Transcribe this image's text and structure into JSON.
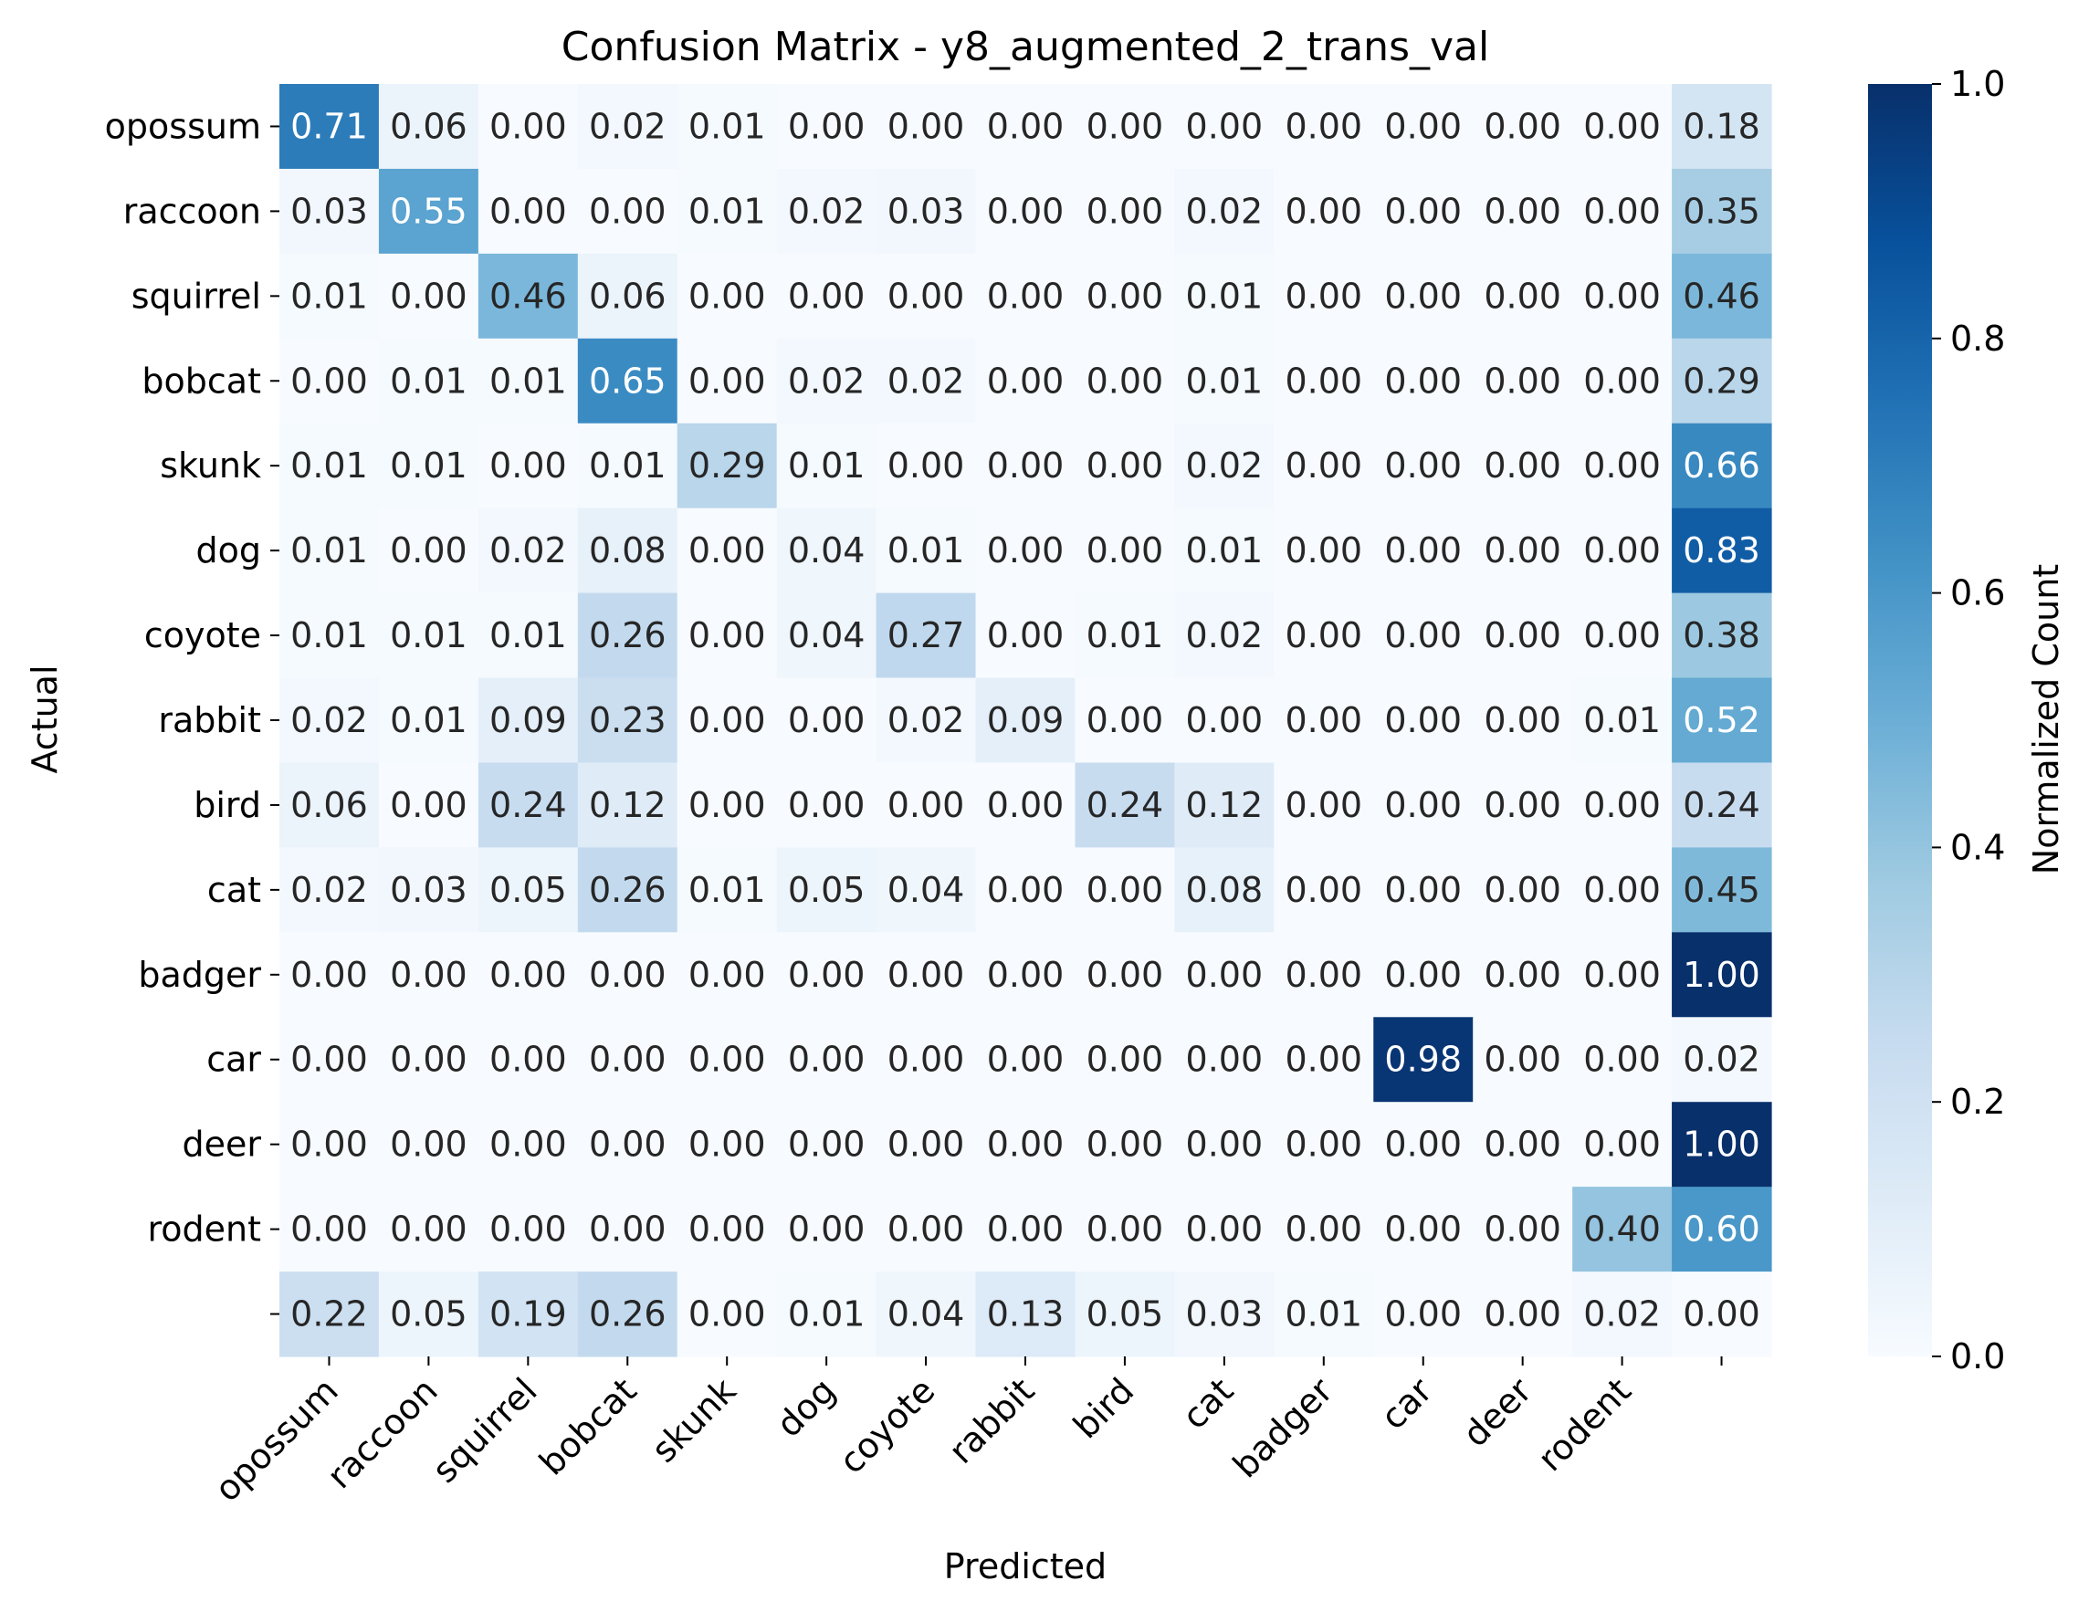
{
  "chart_data": {
    "type": "heatmap",
    "title": "Confusion Matrix - y8_augmented_2_trans_val",
    "xlabel": "Predicted",
    "ylabel": "Actual",
    "x_categories": [
      "opossum",
      "raccoon",
      "squirrel",
      "bobcat",
      "skunk",
      "dog",
      "coyote",
      "rabbit",
      "bird",
      "cat",
      "badger",
      "car",
      "deer",
      "rodent",
      ""
    ],
    "y_categories": [
      "opossum",
      "raccoon",
      "squirrel",
      "bobcat",
      "skunk",
      "dog",
      "coyote",
      "rabbit",
      "bird",
      "cat",
      "badger",
      "car",
      "deer",
      "rodent",
      ""
    ],
    "values": [
      [
        0.71,
        0.06,
        0.0,
        0.02,
        0.01,
        0.0,
        0.0,
        0.0,
        0.0,
        0.0,
        0.0,
        0.0,
        0.0,
        0.0,
        0.18
      ],
      [
        0.03,
        0.55,
        0.0,
        0.0,
        0.01,
        0.02,
        0.03,
        0.0,
        0.0,
        0.02,
        0.0,
        0.0,
        0.0,
        0.0,
        0.35
      ],
      [
        0.01,
        0.0,
        0.46,
        0.06,
        0.0,
        0.0,
        0.0,
        0.0,
        0.0,
        0.01,
        0.0,
        0.0,
        0.0,
        0.0,
        0.46
      ],
      [
        0.0,
        0.01,
        0.01,
        0.65,
        0.0,
        0.02,
        0.02,
        0.0,
        0.0,
        0.01,
        0.0,
        0.0,
        0.0,
        0.0,
        0.29
      ],
      [
        0.01,
        0.01,
        0.0,
        0.01,
        0.29,
        0.01,
        0.0,
        0.0,
        0.0,
        0.02,
        0.0,
        0.0,
        0.0,
        0.0,
        0.66
      ],
      [
        0.01,
        0.0,
        0.02,
        0.08,
        0.0,
        0.04,
        0.01,
        0.0,
        0.0,
        0.01,
        0.0,
        0.0,
        0.0,
        0.0,
        0.83
      ],
      [
        0.01,
        0.01,
        0.01,
        0.26,
        0.0,
        0.04,
        0.27,
        0.0,
        0.01,
        0.02,
        0.0,
        0.0,
        0.0,
        0.0,
        0.38
      ],
      [
        0.02,
        0.01,
        0.09,
        0.23,
        0.0,
        0.0,
        0.02,
        0.09,
        0.0,
        0.0,
        0.0,
        0.0,
        0.0,
        0.01,
        0.52
      ],
      [
        0.06,
        0.0,
        0.24,
        0.12,
        0.0,
        0.0,
        0.0,
        0.0,
        0.24,
        0.12,
        0.0,
        0.0,
        0.0,
        0.0,
        0.24
      ],
      [
        0.02,
        0.03,
        0.05,
        0.26,
        0.01,
        0.05,
        0.04,
        0.0,
        0.0,
        0.08,
        0.0,
        0.0,
        0.0,
        0.0,
        0.45
      ],
      [
        0.0,
        0.0,
        0.0,
        0.0,
        0.0,
        0.0,
        0.0,
        0.0,
        0.0,
        0.0,
        0.0,
        0.0,
        0.0,
        0.0,
        1.0
      ],
      [
        0.0,
        0.0,
        0.0,
        0.0,
        0.0,
        0.0,
        0.0,
        0.0,
        0.0,
        0.0,
        0.0,
        0.98,
        0.0,
        0.0,
        0.02
      ],
      [
        0.0,
        0.0,
        0.0,
        0.0,
        0.0,
        0.0,
        0.0,
        0.0,
        0.0,
        0.0,
        0.0,
        0.0,
        0.0,
        0.0,
        1.0
      ],
      [
        0.0,
        0.0,
        0.0,
        0.0,
        0.0,
        0.0,
        0.0,
        0.0,
        0.0,
        0.0,
        0.0,
        0.0,
        0.0,
        0.4,
        0.6
      ],
      [
        0.22,
        0.05,
        0.19,
        0.26,
        0.0,
        0.01,
        0.04,
        0.13,
        0.05,
        0.03,
        0.01,
        0.0,
        0.0,
        0.02,
        0.0
      ]
    ],
    "value_format": "0.00",
    "colorscale": "Blues",
    "colorscale_stops": [
      "#f7fbff",
      "#deebf7",
      "#c6dbef",
      "#9ecae1",
      "#6baed6",
      "#4292c6",
      "#2171b5",
      "#08519c",
      "#08306b"
    ],
    "vmin": 0.0,
    "vmax": 1.0,
    "colorbar": {
      "label": "Normalized Count",
      "ticks": [
        0.0,
        0.2,
        0.4,
        0.6,
        0.8,
        1.0
      ],
      "tick_labels": [
        "0.0",
        "0.2",
        "0.4",
        "0.6",
        "0.8",
        "1.0"
      ]
    },
    "text_color_threshold": 0.5,
    "grid": false
  }
}
